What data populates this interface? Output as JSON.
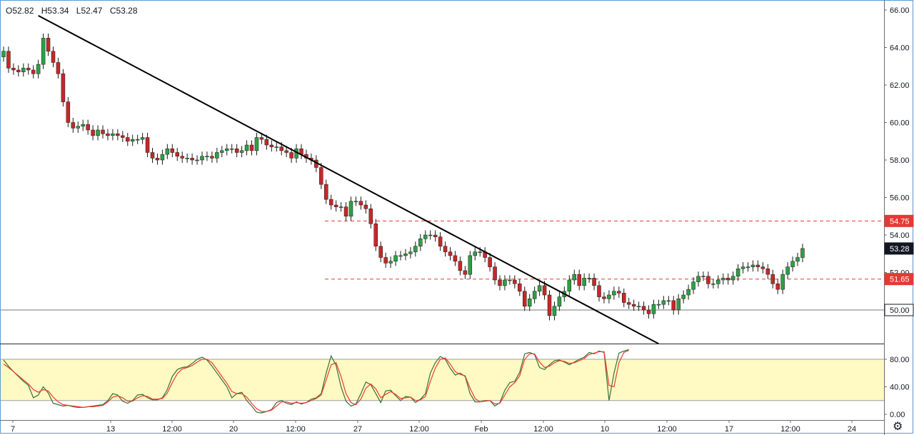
{
  "ohlc": {
    "open": "O52.82",
    "high": "H53.34",
    "low": "L52.47",
    "close": "C53.28"
  },
  "colors": {
    "up": "#26a69a",
    "up_body": "#2ea043",
    "down": "#c62828",
    "trendline": "#000000",
    "level": "#e53935",
    "stoch_k": "#3a6e3a",
    "stoch_d": "#ef3b2c",
    "band": "#fff9c4",
    "grid_line": "#9e9e9e"
  },
  "icons": {
    "settings": "gear-icon"
  },
  "settings_glyph": "⚙",
  "chart_data": [
    {
      "type": "candlestick",
      "title": "",
      "x_labels": [
        "7",
        "13",
        "12:00",
        "20",
        "12:00",
        "27",
        "12:00",
        "Feb",
        "12:00",
        "10",
        "12:00",
        "17",
        "12:00",
        "24"
      ],
      "ylim": [
        48.3,
        66.3
      ],
      "y_ticks": [
        "66.00",
        "64.00",
        "62.00",
        "60.00",
        "58.00",
        "56.00",
        "54.00",
        "52.00"
      ],
      "price_labels": [
        {
          "text": "54.75",
          "value": 54.75,
          "kind": "level"
        },
        {
          "text": "53.28",
          "value": 53.28,
          "kind": "last"
        },
        {
          "text": "51.65",
          "value": 51.65,
          "kind": "level"
        },
        {
          "text": "50.00",
          "value": 50.0,
          "kind": "line"
        }
      ],
      "horizontal_levels": [
        54.75,
        51.65
      ],
      "reference_line": 50.0,
      "trendline": {
        "from": {
          "bar": 7,
          "price": 65.7
        },
        "to": {
          "bar": 132,
          "price": 48.2
        }
      },
      "closes": [
        63.8,
        62.9,
        62.8,
        62.7,
        62.9,
        62.8,
        62.6,
        63.1,
        64.5,
        63.8,
        63.2,
        62.6,
        61.1,
        60.0,
        59.7,
        59.8,
        59.9,
        59.6,
        59.3,
        59.6,
        59.4,
        59.3,
        59.4,
        59.3,
        59.2,
        59.0,
        59.1,
        59.1,
        59.2,
        58.4,
        58.1,
        58.0,
        58.3,
        58.6,
        58.4,
        58.2,
        58.1,
        58.1,
        58.0,
        58.0,
        58.2,
        58.2,
        58.1,
        58.4,
        58.5,
        58.6,
        58.6,
        58.4,
        58.5,
        58.8,
        58.5,
        59.2,
        59.1,
        58.8,
        58.7,
        58.7,
        58.5,
        58.4,
        58.1,
        58.6,
        58.3,
        58.1,
        58.0,
        57.6,
        56.7,
        55.9,
        55.6,
        55.5,
        55.5,
        55.0,
        55.8,
        55.8,
        55.6,
        55.4,
        54.6,
        53.4,
        52.8,
        52.5,
        52.6,
        52.9,
        52.9,
        53.0,
        53.1,
        53.4,
        53.8,
        54.0,
        54.0,
        53.9,
        53.4,
        53.1,
        52.9,
        52.6,
        52.1,
        51.9,
        52.9,
        53.1,
        53.1,
        52.8,
        52.3,
        51.6,
        51.3,
        51.6,
        51.6,
        51.4,
        51.0,
        50.2,
        50.6,
        51.0,
        51.3,
        50.8,
        49.7,
        50.2,
        50.7,
        51.0,
        51.6,
        51.9,
        51.3,
        51.7,
        51.7,
        51.3,
        50.7,
        50.6,
        50.8,
        51.0,
        50.9,
        50.4,
        50.3,
        50.2,
        50.2,
        50.0,
        49.8,
        50.3,
        50.3,
        50.5,
        50.5,
        50.0,
        50.6,
        50.8,
        51.1,
        51.5,
        51.8,
        51.8,
        51.4,
        51.4,
        51.6,
        51.7,
        51.6,
        51.8,
        52.2,
        52.3,
        52.3,
        52.4,
        52.3,
        52.2,
        51.9,
        51.4,
        51.1,
        51.9,
        52.3,
        52.6,
        52.8,
        53.28
      ]
    },
    {
      "type": "line",
      "title": "",
      "ylim": [
        0,
        100
      ],
      "y_ticks": [
        "80.00",
        "40.00",
        "0.00"
      ],
      "band": [
        20,
        80
      ],
      "series": [
        {
          "values": [
            79,
            70,
            62,
            55,
            48,
            42,
            24,
            28,
            40,
            31,
            16,
            14,
            12,
            13,
            11,
            10,
            10,
            11,
            12,
            13,
            14,
            20,
            30,
            28,
            19,
            16,
            20,
            28,
            29,
            24,
            21,
            21,
            24,
            36,
            55,
            65,
            68,
            69,
            74,
            80,
            83,
            79,
            70,
            60,
            50,
            40,
            24,
            30,
            32,
            20,
            12,
            3,
            2,
            4,
            7,
            17,
            20,
            16,
            14,
            18,
            15,
            17,
            22,
            24,
            30,
            60,
            85,
            71,
            40,
            19,
            12,
            15,
            30,
            47,
            43,
            30,
            17,
            34,
            35,
            27,
            20,
            26,
            25,
            17,
            22,
            30,
            60,
            75,
            84,
            80,
            67,
            57,
            60,
            55,
            30,
            18,
            18,
            20,
            20,
            12,
            17,
            35,
            46,
            48,
            61,
            88,
            90,
            87,
            68,
            65,
            72,
            78,
            79,
            76,
            72,
            76,
            80,
            83,
            90,
            88,
            92,
            90,
            20,
            60,
            89,
            92,
            94
          ]
        },
        {
          "values": [
            73,
            68,
            62,
            56,
            50,
            44,
            36,
            32,
            36,
            34,
            25,
            18,
            14,
            13,
            12,
            11,
            10,
            11,
            11,
            12,
            13,
            18,
            25,
            27,
            24,
            19,
            19,
            24,
            27,
            26,
            22,
            22,
            23,
            31,
            46,
            59,
            66,
            68,
            71,
            76,
            80,
            80,
            75,
            65,
            55,
            45,
            33,
            30,
            30,
            25,
            16,
            8,
            4,
            4,
            6,
            12,
            18,
            18,
            16,
            17,
            16,
            17,
            20,
            23,
            28,
            50,
            72,
            75,
            55,
            30,
            17,
            14,
            22,
            38,
            44,
            37,
            24,
            29,
            33,
            29,
            23,
            24,
            25,
            20,
            21,
            26,
            48,
            67,
            80,
            82,
            73,
            62,
            58,
            56,
            38,
            23,
            18,
            19,
            20,
            15,
            16,
            28,
            40,
            46,
            56,
            80,
            88,
            88,
            76,
            68,
            70,
            75,
            78,
            77,
            74,
            75,
            78,
            81,
            87,
            89,
            91,
            91,
            42,
            40,
            75,
            90,
            93
          ]
        }
      ]
    }
  ]
}
